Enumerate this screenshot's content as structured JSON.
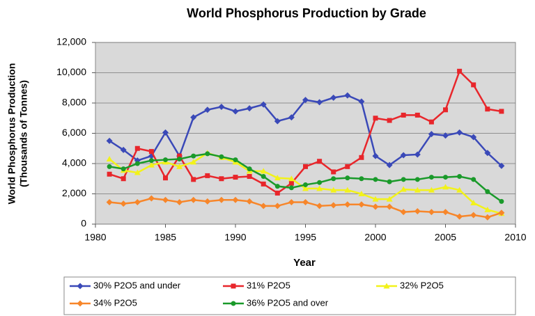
{
  "chart_data": {
    "type": "line",
    "title": "World Phosphorus Production by Grade",
    "x_label": "Year",
    "y_label": [
      "World Phosphorus Production",
      "(Thousands of Tonnes)"
    ],
    "x": [
      1981,
      1982,
      1983,
      1984,
      1985,
      1986,
      1987,
      1988,
      1989,
      1990,
      1991,
      1992,
      1993,
      1994,
      1995,
      1996,
      1997,
      1998,
      1999,
      2000,
      2001,
      2002,
      2003,
      2004,
      2005,
      2006,
      2007,
      2008,
      2009
    ],
    "xlim": [
      1980,
      2010
    ],
    "xticks": [
      1980,
      1985,
      1990,
      1995,
      2000,
      2005,
      2010
    ],
    "ylim": [
      0,
      12000
    ],
    "yticks": [
      0,
      {
        "value": 2000,
        "label": "2,000"
      },
      {
        "value": 4000,
        "label": "4,000"
      },
      {
        "value": 6000,
        "label": "6,000"
      },
      {
        "value": 8000,
        "label": "8,000"
      },
      {
        "value": 10000,
        "label": "10,000"
      },
      {
        "value": 12000,
        "label": "12,000"
      }
    ],
    "grid": true,
    "legend": "bottom",
    "series": [
      {
        "name": "30% P2O5 and under",
        "color": "#3a49b8",
        "marker": "diamond",
        "values": [
          5500,
          4900,
          4200,
          4500,
          6050,
          4500,
          7050,
          7550,
          7750,
          7450,
          7650,
          7900,
          6800,
          7050,
          8200,
          8050,
          8350,
          8500,
          8100,
          4500,
          3900,
          4550,
          4600,
          5950,
          5850,
          6050,
          5750,
          4700,
          3850
        ]
      },
      {
        "name": "31% P2O5",
        "color": "#e8262b",
        "marker": "square",
        "values": [
          3300,
          3000,
          5000,
          4800,
          3050,
          4500,
          2950,
          3200,
          3000,
          3100,
          3150,
          2650,
          2050,
          2700,
          3800,
          4150,
          3450,
          3800,
          4400,
          7000,
          6850,
          7200,
          7200,
          6750,
          7550,
          10100,
          9200,
          7600,
          7450
        ]
      },
      {
        "name": "32% P2O5",
        "color": "#f2f21a",
        "marker": "triangle",
        "values": [
          4300,
          3550,
          3400,
          3900,
          4100,
          3800,
          4100,
          4700,
          4400,
          4100,
          3500,
          3500,
          3050,
          3000,
          2350,
          2350,
          2250,
          2250,
          2000,
          1650,
          1650,
          2300,
          2250,
          2250,
          2450,
          2250,
          1400,
          950,
          700
        ]
      },
      {
        "name": "34% P2O5",
        "color": "#f7862a",
        "marker": "diamond",
        "values": [
          1450,
          1350,
          1450,
          1700,
          1600,
          1450,
          1600,
          1500,
          1600,
          1600,
          1500,
          1200,
          1200,
          1450,
          1450,
          1200,
          1250,
          1300,
          1300,
          1150,
          1150,
          800,
          850,
          800,
          800,
          500,
          600,
          450,
          750
        ]
      },
      {
        "name": "36% P2O5 and over",
        "color": "#1a9a2a",
        "marker": "circle",
        "values": [
          3800,
          3650,
          4000,
          4200,
          4250,
          4300,
          4500,
          4650,
          4450,
          4250,
          3650,
          3150,
          2500,
          2400,
          2600,
          2750,
          3000,
          3050,
          3000,
          2950,
          2800,
          2950,
          2950,
          3100,
          3100,
          3150,
          2950,
          2150,
          1500
        ]
      }
    ]
  }
}
